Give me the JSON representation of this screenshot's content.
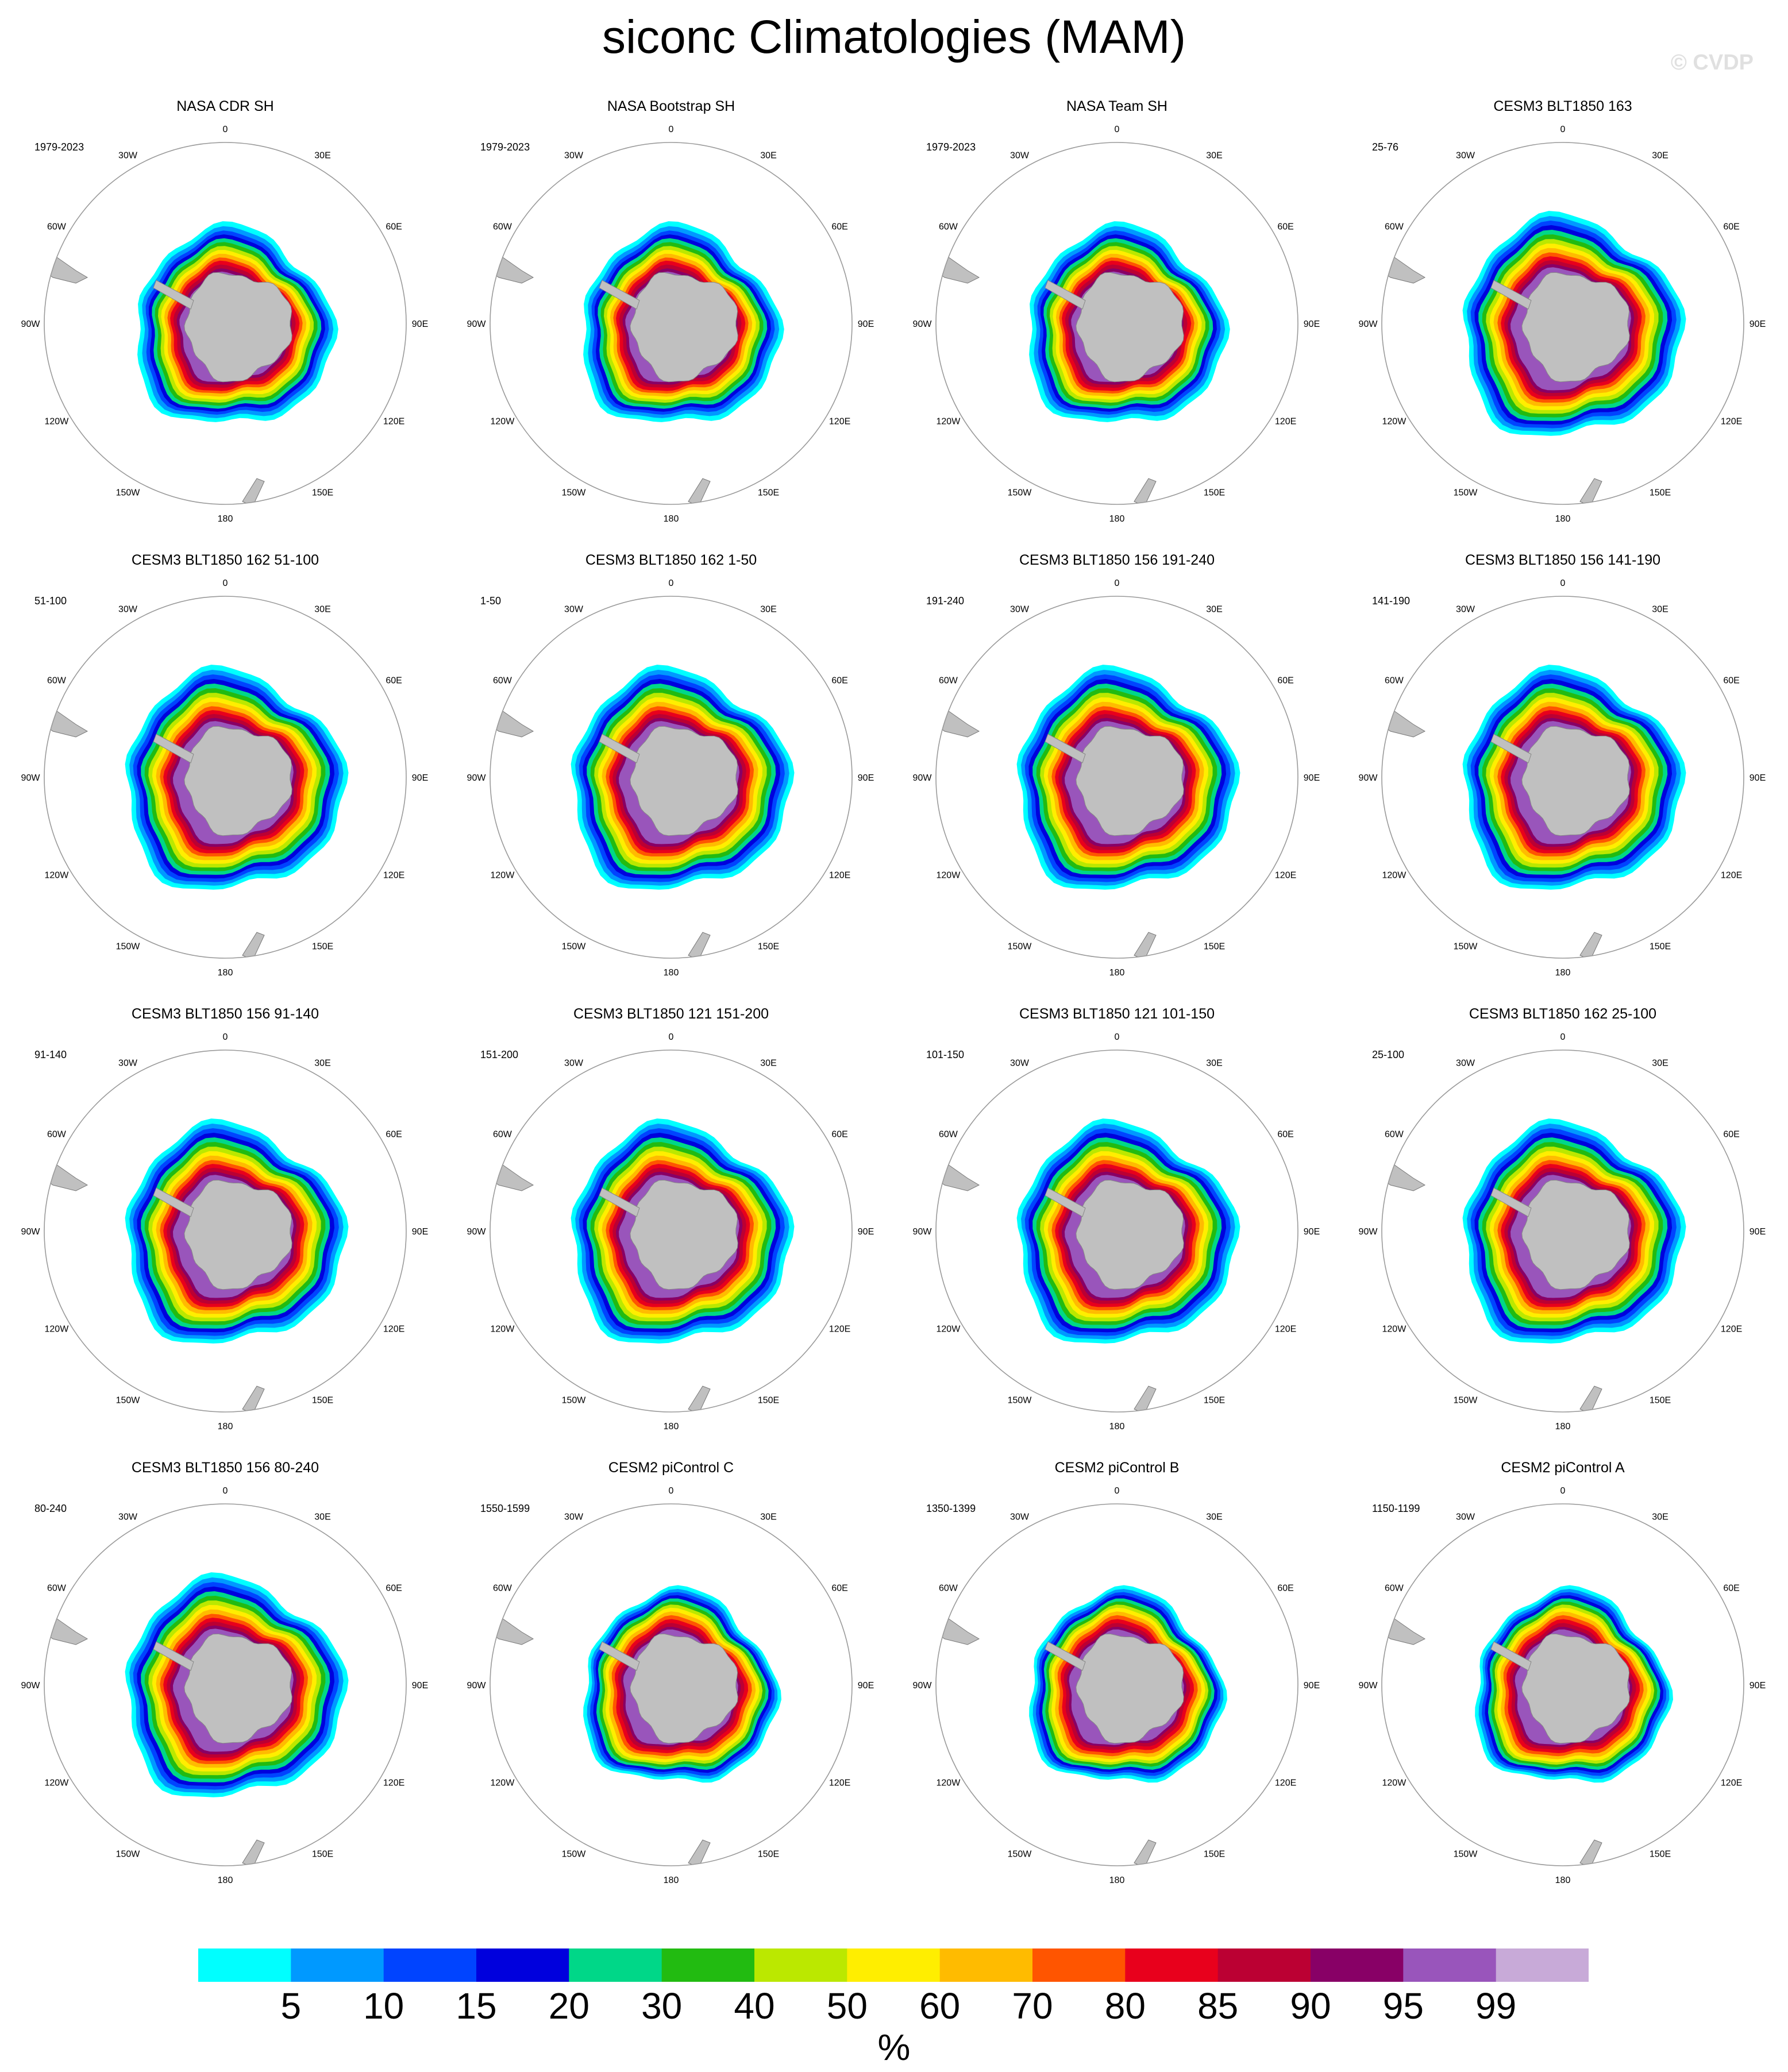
{
  "title": "siconc Climatologies (MAM)",
  "watermark": "© CVDP",
  "lon_labels": [
    "0",
    "30E",
    "60E",
    "90E",
    "120E",
    "150E",
    "180",
    "150W",
    "120W",
    "90W",
    "60W",
    "30W"
  ],
  "panels": [
    {
      "title": "NASA CDR SH",
      "period": "1979-2023",
      "style": "obs"
    },
    {
      "title": "NASA Bootstrap SH",
      "period": "1979-2023",
      "style": "obs"
    },
    {
      "title": "NASA Team SH",
      "period": "1979-2023",
      "style": "obs"
    },
    {
      "title": "CESM3 BLT1850 163",
      "period": "25-76",
      "style": "cesm3"
    },
    {
      "title": "CESM3 BLT1850 162 51-100",
      "period": "51-100",
      "style": "cesm3"
    },
    {
      "title": "CESM3 BLT1850 162 1-50",
      "period": "1-50",
      "style": "cesm3"
    },
    {
      "title": "CESM3 BLT1850 156 191-240",
      "period": "191-240",
      "style": "cesm3"
    },
    {
      "title": "CESM3 BLT1850 156 141-190",
      "period": "141-190",
      "style": "cesm3"
    },
    {
      "title": "CESM3 BLT1850 156 91-140",
      "period": "91-140",
      "style": "cesm3"
    },
    {
      "title": "CESM3 BLT1850 121 151-200",
      "period": "151-200",
      "style": "cesm3"
    },
    {
      "title": "CESM3 BLT1850 121 101-150",
      "period": "101-150",
      "style": "cesm3"
    },
    {
      "title": "CESM3 BLT1850 162 25-100",
      "period": "25-100",
      "style": "cesm3"
    },
    {
      "title": "CESM3 BLT1850 156 80-240",
      "period": "80-240",
      "style": "cesm3"
    },
    {
      "title": "CESM2 piControl C",
      "period": "1550-1599",
      "style": "cesm2"
    },
    {
      "title": "CESM2 piControl B",
      "period": "1350-1399",
      "style": "cesm2"
    },
    {
      "title": "CESM2 piControl A",
      "period": "1150-1199",
      "style": "cesm2"
    }
  ],
  "colorbar": {
    "colors": [
      "#00ffff",
      "#0099ff",
      "#0044ff",
      "#0000dd",
      "#00d788",
      "#22bb11",
      "#bbe800",
      "#ffee00",
      "#ffbb00",
      "#ff5500",
      "#e8001c",
      "#bb0033",
      "#880066",
      "#9955bb",
      "#c8aad8"
    ],
    "labels": [
      "5",
      "10",
      "15",
      "20",
      "30",
      "40",
      "50",
      "60",
      "70",
      "80",
      "85",
      "90",
      "95",
      "99"
    ],
    "units": "%"
  },
  "land_color": "#c0c0c0"
}
